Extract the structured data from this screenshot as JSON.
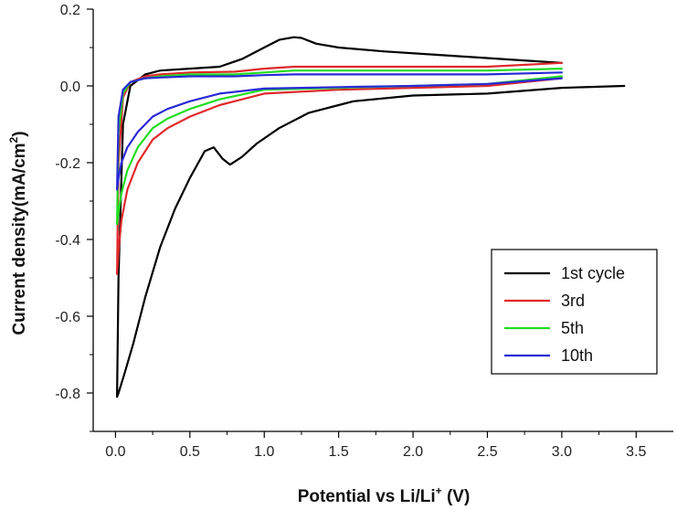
{
  "chart_data": {
    "type": "line",
    "title": "",
    "xlabel": "Potential vs Li/Li",
    "xlabel_sup": "+",
    "xlabel_suffix": " (V)",
    "ylabel": "Current density(mA/cm",
    "ylabel_sup": "2",
    "ylabel_suffix": ")",
    "xlim": [
      -0.15,
      3.75
    ],
    "ylim": [
      -0.9,
      0.2
    ],
    "xticks": [
      0.0,
      0.5,
      1.0,
      1.5,
      2.0,
      2.5,
      3.0,
      3.5
    ],
    "xtick_labels": [
      "0.0",
      "0.5",
      "1.0",
      "1.5",
      "2.0",
      "2.5",
      "3.0",
      "3.5"
    ],
    "yticks": [
      0.2,
      0.0,
      -0.2,
      -0.4,
      -0.6,
      -0.8
    ],
    "ytick_labels": [
      "0.2",
      "0.0",
      "-0.2",
      "-0.4",
      "-0.6",
      "-0.8"
    ],
    "grid": false,
    "legend_position": "right",
    "series": [
      {
        "name": "1st cycle",
        "color": "#000000",
        "x": [
          3.42,
          3.0,
          2.5,
          2.0,
          1.6,
          1.3,
          1.1,
          0.95,
          0.85,
          0.77,
          0.72,
          0.66,
          0.6,
          0.5,
          0.4,
          0.3,
          0.2,
          0.12,
          0.06,
          0.02,
          0.01,
          0.02,
          0.05,
          0.1,
          0.2,
          0.3,
          0.5,
          0.7,
          0.85,
          1.0,
          1.1,
          1.2,
          1.25,
          1.35,
          1.5,
          1.8,
          2.2,
          2.6,
          3.0
        ],
        "y": [
          0.0,
          -0.005,
          -0.02,
          -0.025,
          -0.04,
          -0.07,
          -0.11,
          -0.15,
          -0.185,
          -0.205,
          -0.19,
          -0.16,
          -0.17,
          -0.24,
          -0.32,
          -0.42,
          -0.55,
          -0.67,
          -0.75,
          -0.8,
          -0.81,
          -0.5,
          -0.1,
          0.0,
          0.03,
          0.04,
          0.045,
          0.05,
          0.07,
          0.1,
          0.12,
          0.127,
          0.125,
          0.11,
          0.1,
          0.09,
          0.08,
          0.07,
          0.06
        ]
      },
      {
        "name": "3rd",
        "color": "#e0282b",
        "x": [
          3.0,
          2.5,
          2.0,
          1.5,
          1.0,
          0.7,
          0.5,
          0.35,
          0.25,
          0.15,
          0.08,
          0.04,
          0.02,
          0.01,
          0.02,
          0.05,
          0.1,
          0.2,
          0.3,
          0.5,
          0.8,
          1.0,
          1.2,
          1.5,
          2.0,
          2.5,
          3.0
        ],
        "y": [
          0.02,
          0.0,
          -0.005,
          -0.01,
          -0.02,
          -0.05,
          -0.08,
          -0.11,
          -0.14,
          -0.2,
          -0.27,
          -0.35,
          -0.43,
          -0.49,
          -0.2,
          -0.03,
          0.01,
          0.025,
          0.03,
          0.035,
          0.037,
          0.045,
          0.05,
          0.05,
          0.05,
          0.05,
          0.06
        ]
      },
      {
        "name": "5th",
        "color": "#22dd22",
        "x": [
          3.0,
          2.5,
          2.0,
          1.5,
          1.0,
          0.7,
          0.5,
          0.35,
          0.25,
          0.15,
          0.08,
          0.04,
          0.02,
          0.01,
          0.02,
          0.05,
          0.1,
          0.2,
          0.3,
          0.5,
          0.8,
          1.0,
          1.2,
          1.5,
          2.0,
          2.5,
          3.0
        ],
        "y": [
          0.025,
          0.005,
          0.0,
          -0.005,
          -0.01,
          -0.035,
          -0.06,
          -0.085,
          -0.11,
          -0.16,
          -0.22,
          -0.28,
          -0.33,
          -0.36,
          -0.12,
          -0.02,
          0.01,
          0.02,
          0.025,
          0.03,
          0.03,
          0.035,
          0.04,
          0.04,
          0.04,
          0.04,
          0.045
        ]
      },
      {
        "name": "10th",
        "color": "#2a2ad6",
        "x": [
          3.0,
          2.5,
          2.0,
          1.5,
          1.0,
          0.7,
          0.5,
          0.35,
          0.25,
          0.15,
          0.08,
          0.04,
          0.02,
          0.01,
          0.02,
          0.05,
          0.1,
          0.2,
          0.3,
          0.5,
          0.8,
          1.0,
          1.2,
          1.5,
          2.0,
          2.5,
          3.0
        ],
        "y": [
          0.02,
          0.005,
          0.0,
          -0.003,
          -0.007,
          -0.02,
          -0.04,
          -0.06,
          -0.08,
          -0.12,
          -0.16,
          -0.2,
          -0.24,
          -0.27,
          -0.08,
          -0.01,
          0.01,
          0.02,
          0.022,
          0.025,
          0.025,
          0.028,
          0.03,
          0.03,
          0.03,
          0.03,
          0.035
        ]
      }
    ]
  }
}
